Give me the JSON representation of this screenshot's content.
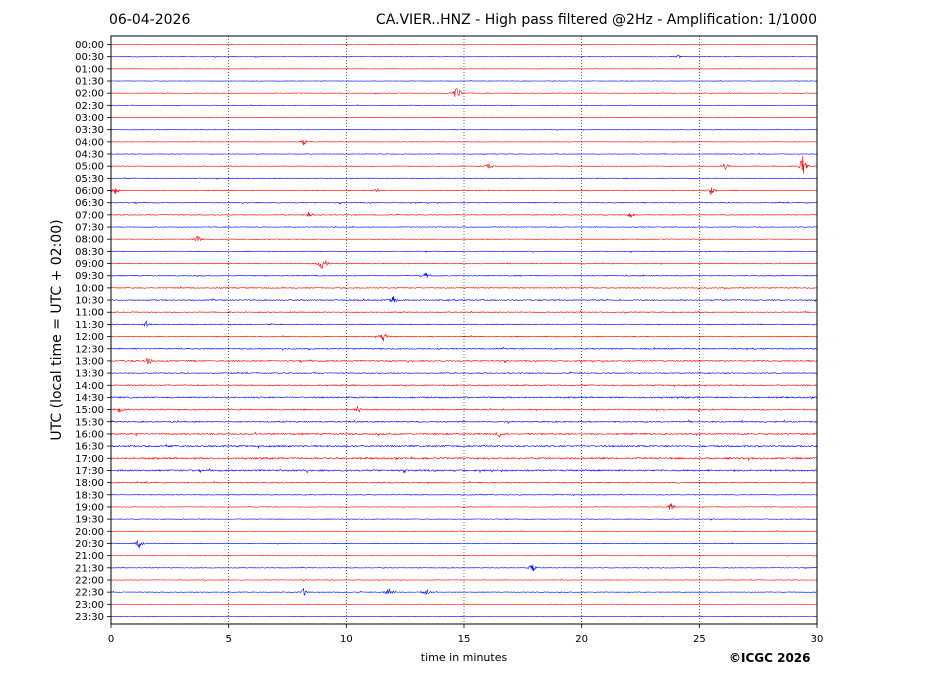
{
  "header": {
    "date": "06-04-2026",
    "title": "CA.VIER..HNZ - High pass filtered @2Hz - Amplification: 1/1000"
  },
  "footer": {
    "copyright": "©ICGC 2026"
  },
  "colors": {
    "trace_even": "#ff0000",
    "trace_odd": "#0000ff",
    "grid": "#000000",
    "axes": "#000000"
  },
  "chart_data": {
    "type": "line",
    "title": "CA.VIER..HNZ - High pass filtered @2Hz - Amplification: 1/1000",
    "xlabel": "time in minutes",
    "ylabel": "UTC (local time = UTC + 02:00)",
    "xlim": [
      0,
      30
    ],
    "x_ticks": [
      0,
      5,
      10,
      15,
      20,
      25,
      30
    ],
    "grid": "vertical dotted lines at 5, 10, 15, 20, 25",
    "row_labels": [
      "00:00",
      "00:30",
      "01:00",
      "01:30",
      "02:00",
      "02:30",
      "03:00",
      "03:30",
      "04:00",
      "04:30",
      "05:00",
      "05:30",
      "06:00",
      "06:30",
      "07:00",
      "07:30",
      "08:00",
      "08:30",
      "09:00",
      "09:30",
      "10:00",
      "10:30",
      "11:00",
      "11:30",
      "12:00",
      "12:30",
      "13:00",
      "13:30",
      "14:00",
      "14:30",
      "15:00",
      "15:30",
      "16:00",
      "16:30",
      "17:00",
      "17:30",
      "18:00",
      "18:30",
      "19:00",
      "19:30",
      "20:00",
      "20:30",
      "21:00",
      "21:30",
      "22:00",
      "22:30",
      "23:00",
      "23:30"
    ],
    "row_colors": "alternating red / blue",
    "noise_level": [
      0.15,
      0.25,
      0.18,
      0.2,
      0.3,
      0.22,
      0.2,
      0.28,
      0.22,
      0.25,
      0.3,
      0.35,
      0.32,
      0.4,
      0.35,
      0.32,
      0.3,
      0.3,
      0.35,
      0.4,
      0.45,
      0.5,
      0.45,
      0.4,
      0.45,
      0.5,
      0.6,
      0.45,
      0.55,
      0.65,
      0.6,
      0.55,
      0.7,
      0.75,
      0.8,
      0.75,
      0.5,
      0.35,
      0.3,
      0.28,
      0.25,
      0.3,
      0.25,
      0.28,
      0.25,
      0.3,
      0.18,
      0.15
    ],
    "events": [
      {
        "row": 1,
        "minute": 24.1,
        "amplitude": 0.5
      },
      {
        "row": 4,
        "minute": 14.7,
        "amplitude": 2.4
      },
      {
        "row": 8,
        "minute": 8.2,
        "amplitude": 1.0
      },
      {
        "row": 10,
        "minute": 16.1,
        "amplitude": 1.2
      },
      {
        "row": 10,
        "minute": 26.1,
        "amplitude": 1.0
      },
      {
        "row": 10,
        "minute": 29.4,
        "amplitude": 2.8
      },
      {
        "row": 12,
        "minute": 0.2,
        "amplitude": 1.0
      },
      {
        "row": 12,
        "minute": 11.3,
        "amplitude": 0.6
      },
      {
        "row": 12,
        "minute": 25.5,
        "amplitude": 1.2
      },
      {
        "row": 14,
        "minute": 8.4,
        "amplitude": 0.8
      },
      {
        "row": 14,
        "minute": 22.1,
        "amplitude": 1.0
      },
      {
        "row": 16,
        "minute": 3.7,
        "amplitude": 1.2
      },
      {
        "row": 18,
        "minute": 9.0,
        "amplitude": 2.6
      },
      {
        "row": 19,
        "minute": 13.4,
        "amplitude": 1.0
      },
      {
        "row": 21,
        "minute": 12.0,
        "amplitude": 1.2
      },
      {
        "row": 23,
        "minute": 1.5,
        "amplitude": 0.8
      },
      {
        "row": 24,
        "minute": 11.6,
        "amplitude": 1.4
      },
      {
        "row": 26,
        "minute": 1.6,
        "amplitude": 1.4
      },
      {
        "row": 30,
        "minute": 0.4,
        "amplitude": 1.0
      },
      {
        "row": 30,
        "minute": 10.5,
        "amplitude": 1.0
      },
      {
        "row": 32,
        "minute": 16.5,
        "amplitude": 1.0
      },
      {
        "row": 38,
        "minute": 23.8,
        "amplitude": 1.2
      },
      {
        "row": 41,
        "minute": 1.2,
        "amplitude": 1.4
      },
      {
        "row": 43,
        "minute": 17.9,
        "amplitude": 1.4
      },
      {
        "row": 45,
        "minute": 8.2,
        "amplitude": 1.0
      },
      {
        "row": 45,
        "minute": 11.8,
        "amplitude": 1.2
      },
      {
        "row": 45,
        "minute": 13.4,
        "amplitude": 1.0
      }
    ]
  }
}
